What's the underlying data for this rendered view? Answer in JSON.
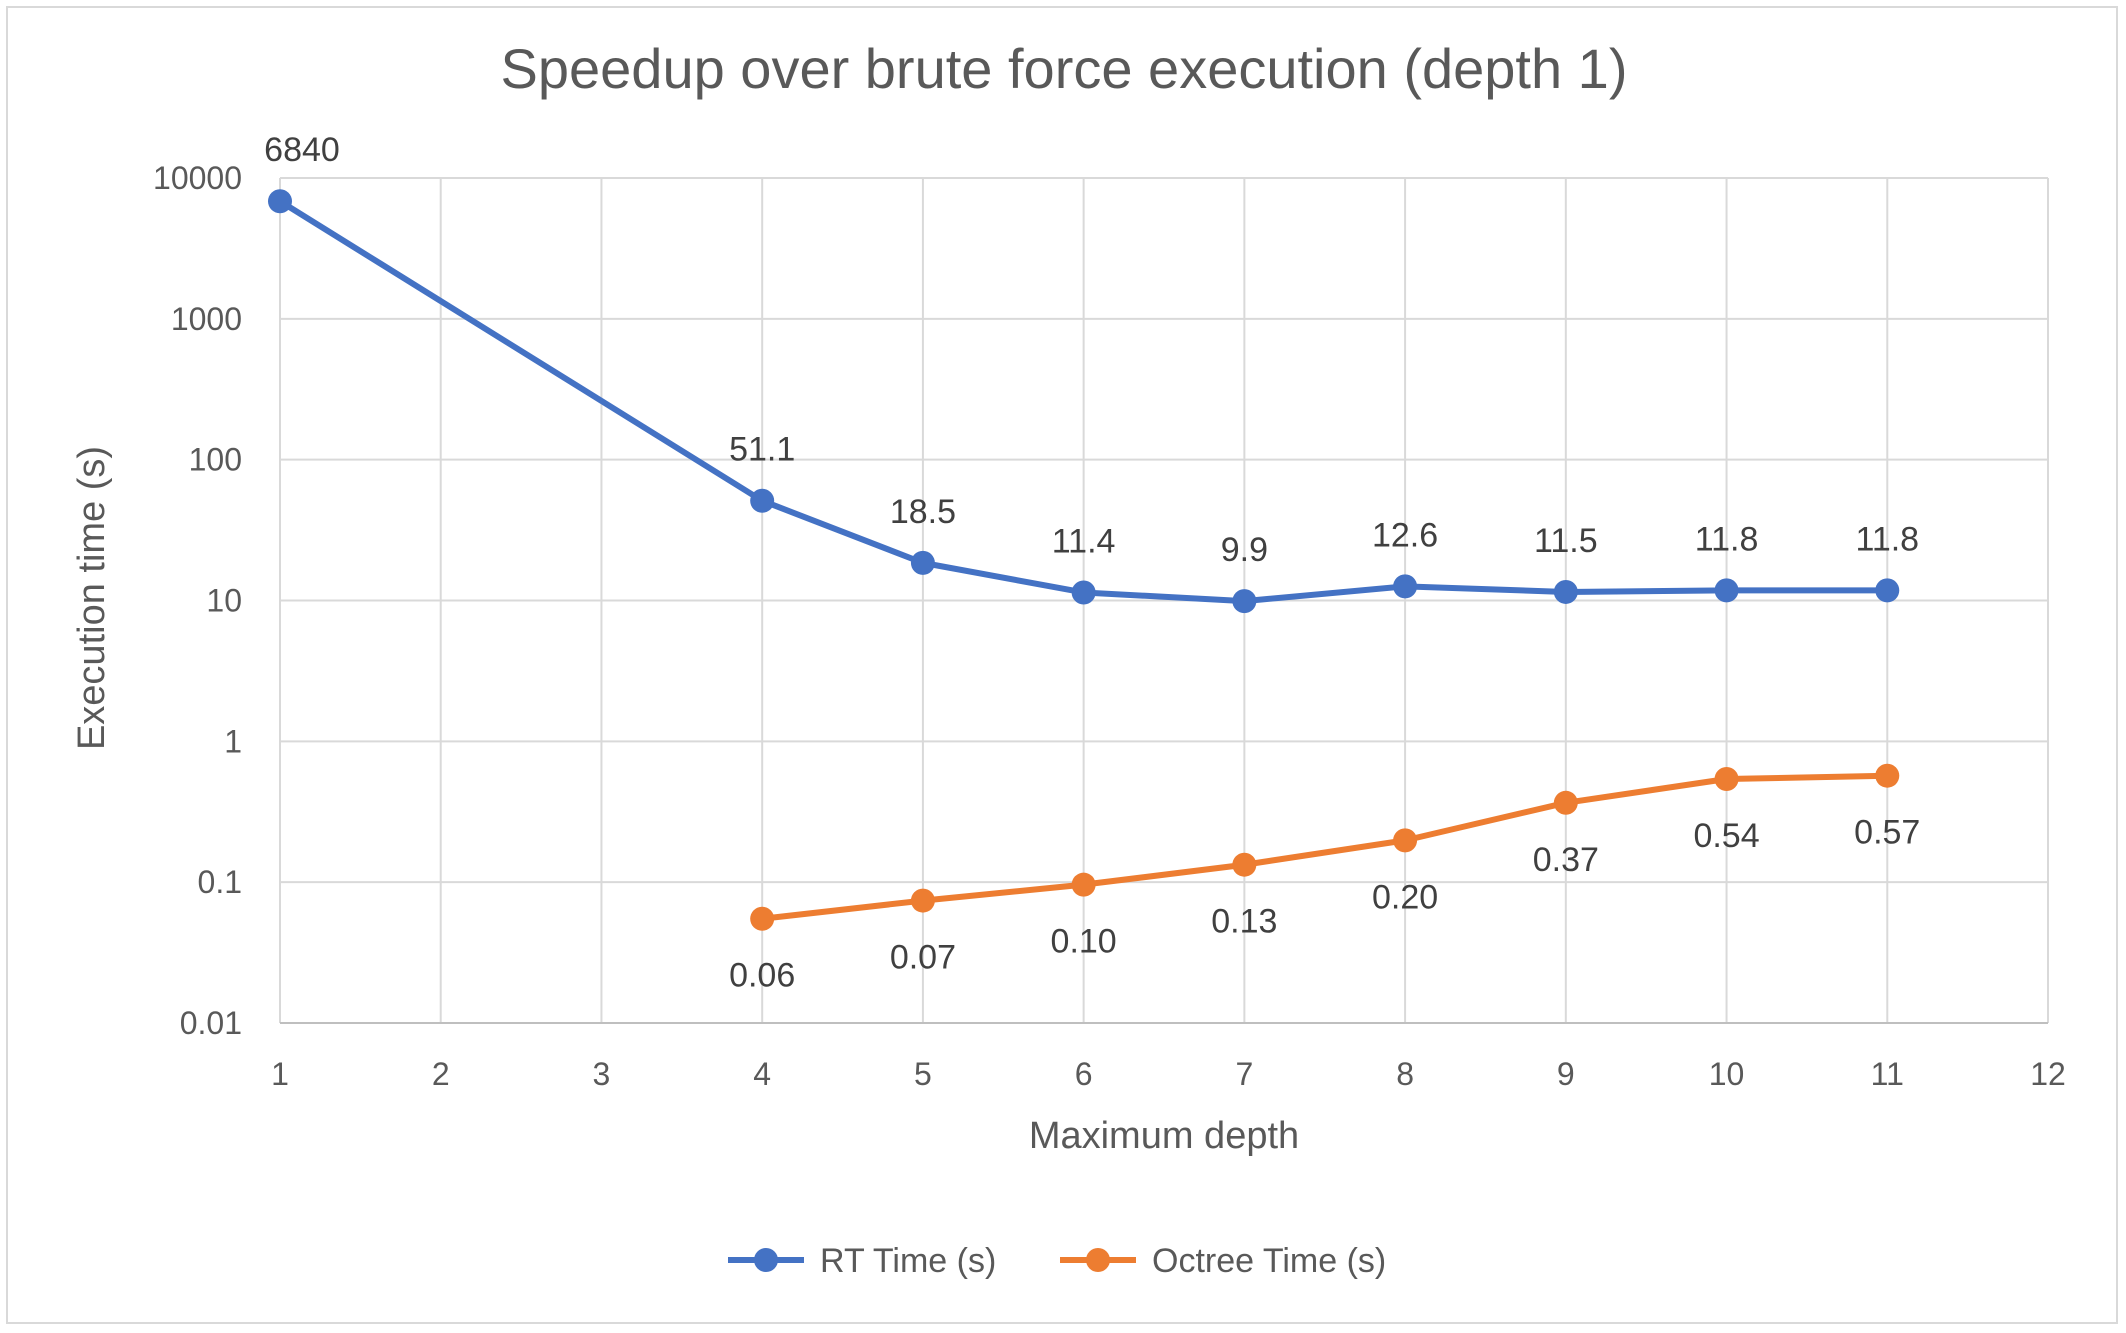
{
  "chart_data": {
    "type": "line",
    "title": "Speedup over brute force execution (depth 1)",
    "xlabel": "Maximum depth",
    "ylabel": "Execution time (s)",
    "x_ticks": [
      "1",
      "2",
      "3",
      "4",
      "5",
      "6",
      "7",
      "8",
      "9",
      "10",
      "11",
      "12"
    ],
    "y_ticks": [
      "0.01",
      "0.1",
      "1",
      "10",
      "100",
      "1000",
      "10000"
    ],
    "xlim": [
      1,
      12
    ],
    "ylim": [
      0.01,
      10000
    ],
    "y_scale": "log",
    "grid": true,
    "legend_position": "bottom",
    "series": [
      {
        "name": "RT Time (s)",
        "color": "#4472C4",
        "x": [
          1,
          4,
          5,
          6,
          7,
          8,
          9,
          10,
          11
        ],
        "values": [
          6840,
          51.1,
          18.5,
          11.4,
          9.9,
          12.6,
          11.5,
          11.8,
          11.8
        ],
        "labels": [
          "6840",
          "51.1",
          "18.5",
          "11.4",
          "9.9",
          "12.6",
          "11.5",
          "11.8",
          "11.8"
        ],
        "label_position": "above"
      },
      {
        "name": "Octree Time (s)",
        "color": "#ED7D31",
        "x": [
          4,
          5,
          6,
          7,
          8,
          9,
          10,
          11
        ],
        "values": [
          0.055,
          0.074,
          0.096,
          0.133,
          0.198,
          0.366,
          0.54,
          0.57
        ],
        "labels": [
          "0.06",
          "0.07",
          "0.10",
          "0.13",
          "0.20",
          "0.37",
          "0.54",
          "0.57"
        ],
        "label_position": "below"
      }
    ]
  }
}
